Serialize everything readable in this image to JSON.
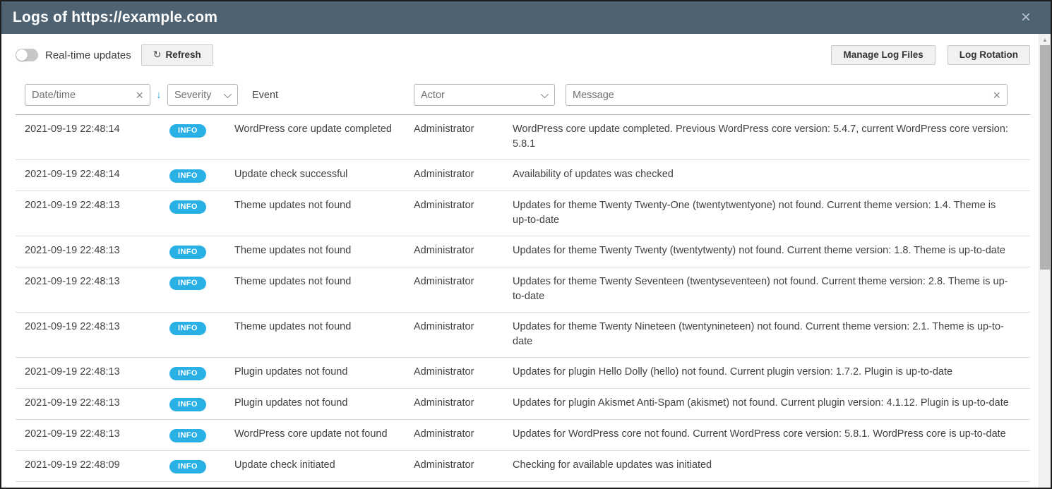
{
  "window": {
    "title": "Logs of https://example.com",
    "close_icon": "×"
  },
  "toolbar": {
    "realtime_label": "Real-time updates",
    "refresh_label": "Refresh",
    "refresh_icon": "↻",
    "manage_log_files_label": "Manage Log Files",
    "log_rotation_label": "Log Rotation"
  },
  "filters": {
    "datetime_placeholder": "Date/time",
    "datetime_clear_icon": "×",
    "sort_desc_icon": "↓",
    "severity_label": "Severity",
    "event_label": "Event",
    "actor_label": "Actor",
    "message_placeholder": "Message",
    "message_clear_icon": "×"
  },
  "scrollbar": {
    "up_icon": "▲"
  },
  "colors": {
    "titlebar": "#4e6272",
    "badge_info": "#29b1e6",
    "accent": "#2d9fd8"
  },
  "table": {
    "rows": [
      {
        "datetime": "2021-09-19 22:48:14",
        "severity": "INFO",
        "event": "WordPress core update completed",
        "actor": "Administrator",
        "message": "WordPress core update completed. Previous WordPress core version: 5.4.7, current WordPress core version: 5.8.1"
      },
      {
        "datetime": "2021-09-19 22:48:14",
        "severity": "INFO",
        "event": "Update check successful",
        "actor": "Administrator",
        "message": "Availability of updates was checked"
      },
      {
        "datetime": "2021-09-19 22:48:13",
        "severity": "INFO",
        "event": "Theme updates not found",
        "actor": "Administrator",
        "message": "Updates for theme Twenty Twenty-One (twentytwentyone) not found. Current theme version: 1.4. Theme is up-to-date"
      },
      {
        "datetime": "2021-09-19 22:48:13",
        "severity": "INFO",
        "event": "Theme updates not found",
        "actor": "Administrator",
        "message": "Updates for theme Twenty Twenty (twentytwenty) not found. Current theme version: 1.8. Theme is up-to-date"
      },
      {
        "datetime": "2021-09-19 22:48:13",
        "severity": "INFO",
        "event": "Theme updates not found",
        "actor": "Administrator",
        "message": "Updates for theme Twenty Seventeen (twentyseventeen) not found. Current theme version: 2.8. Theme is up-to-date"
      },
      {
        "datetime": "2021-09-19 22:48:13",
        "severity": "INFO",
        "event": "Theme updates not found",
        "actor": "Administrator",
        "message": "Updates for theme Twenty Nineteen (twentynineteen) not found. Current theme version: 2.1. Theme is up-to-date"
      },
      {
        "datetime": "2021-09-19 22:48:13",
        "severity": "INFO",
        "event": "Plugin updates not found",
        "actor": "Administrator",
        "message": "Updates for plugin Hello Dolly (hello) not found. Current plugin version: 1.7.2. Plugin is up-to-date"
      },
      {
        "datetime": "2021-09-19 22:48:13",
        "severity": "INFO",
        "event": "Plugin updates not found",
        "actor": "Administrator",
        "message": "Updates for plugin Akismet Anti-Spam (akismet) not found. Current plugin version: 4.1.12. Plugin is up-to-date"
      },
      {
        "datetime": "2021-09-19 22:48:13",
        "severity": "INFO",
        "event": "WordPress core update not found",
        "actor": "Administrator",
        "message": "Updates for WordPress core not found. Current WordPress core version: 5.8.1. WordPress core is up-to-date"
      },
      {
        "datetime": "2021-09-19 22:48:09",
        "severity": "INFO",
        "event": "Update check initiated",
        "actor": "Administrator",
        "message": "Checking for available updates was initiated"
      }
    ]
  }
}
